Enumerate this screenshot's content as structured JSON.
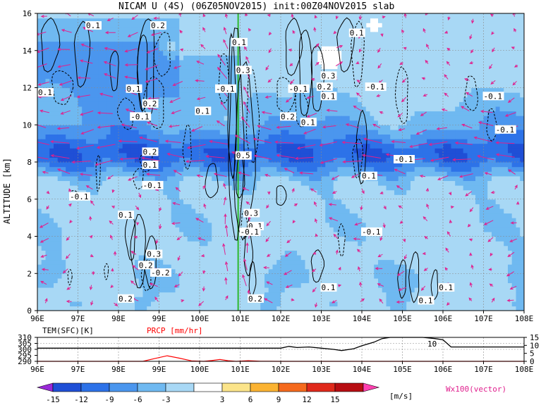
{
  "chart_data": {
    "type": "heatmap",
    "title": "NICAM U (4S) (06Z05NOV2015) init:00Z04NOV2015 slab",
    "main_panel": {
      "ylabel": "ALTITUDE [km]",
      "x_ticks": [
        "96E",
        "97E",
        "98E",
        "99E",
        "100E",
        "101E",
        "102E",
        "103E",
        "104E",
        "105E",
        "106E",
        "107E",
        "108E"
      ],
      "x_range": [
        96,
        108
      ],
      "y_ticks": [
        0,
        2,
        4,
        6,
        8,
        10,
        12,
        14,
        16
      ],
      "y_range": [
        0,
        16
      ],
      "shaded_variable": "U wind",
      "contour_labels": [
        {
          "text": "0.1",
          "lon": 97.2,
          "alt": 15.2
        },
        {
          "text": "0.2",
          "lon": 98.8,
          "alt": 15.2
        },
        {
          "text": "0.1",
          "lon": 100.8,
          "alt": 14.3
        },
        {
          "text": "0.1",
          "lon": 103.7,
          "alt": 14.8
        },
        {
          "text": "0.1",
          "lon": 96.0,
          "alt": 11.6
        },
        {
          "text": "0.1",
          "lon": 98.2,
          "alt": 11.8
        },
        {
          "text": "0.2",
          "lon": 98.6,
          "alt": 11.0
        },
        {
          "text": "-0.1",
          "lon": 98.3,
          "alt": 10.3
        },
        {
          "text": "0.1",
          "lon": 99.9,
          "alt": 10.6
        },
        {
          "text": "-0.1",
          "lon": 100.4,
          "alt": 11.8
        },
        {
          "text": "0.3",
          "lon": 100.9,
          "alt": 12.8
        },
        {
          "text": "-0.1",
          "lon": 102.2,
          "alt": 11.8
        },
        {
          "text": "0.2",
          "lon": 102.0,
          "alt": 10.3
        },
        {
          "text": "0.1",
          "lon": 102.5,
          "alt": 10.0
        },
        {
          "text": "0.3",
          "lon": 103.0,
          "alt": 12.5
        },
        {
          "text": "0.2",
          "lon": 102.9,
          "alt": 11.9
        },
        {
          "text": "0.1",
          "lon": 103.0,
          "alt": 11.4
        },
        {
          "text": "-0.1",
          "lon": 104.1,
          "alt": 11.9
        },
        {
          "text": "-0.1",
          "lon": 107.0,
          "alt": 11.4
        },
        {
          "text": "-0.1",
          "lon": 107.3,
          "alt": 9.6
        },
        {
          "text": "0.2",
          "lon": 98.6,
          "alt": 8.4
        },
        {
          "text": "0.1",
          "lon": 98.6,
          "alt": 7.7
        },
        {
          "text": "0.5",
          "lon": 100.9,
          "alt": 8.2
        },
        {
          "text": "-0.1",
          "lon": 104.8,
          "alt": 8.0
        },
        {
          "text": "0.1",
          "lon": 104.0,
          "alt": 7.1
        },
        {
          "text": "-0.1",
          "lon": 98.6,
          "alt": 6.6
        },
        {
          "text": "-0.1",
          "lon": 96.8,
          "alt": 6.0
        },
        {
          "text": "0.1",
          "lon": 98.0,
          "alt": 5.0
        },
        {
          "text": "0.3",
          "lon": 101.1,
          "alt": 5.1
        },
        {
          "text": "0.1",
          "lon": 101.2,
          "alt": 4.4
        },
        {
          "text": "-0.1",
          "lon": 101.0,
          "alt": 4.1
        },
        {
          "text": "-0.1",
          "lon": 104.0,
          "alt": 4.1
        },
        {
          "text": "0.3",
          "lon": 98.7,
          "alt": 2.9
        },
        {
          "text": "0.2",
          "lon": 98.5,
          "alt": 2.3
        },
        {
          "text": "-0.2",
          "lon": 98.8,
          "alt": 1.9
        },
        {
          "text": "0.1",
          "lon": 103.0,
          "alt": 1.1
        },
        {
          "text": "0.2",
          "lon": 98.0,
          "alt": 0.5
        },
        {
          "text": "0.2",
          "lon": 101.2,
          "alt": 0.5
        },
        {
          "text": "0.1",
          "lon": 105.4,
          "alt": 0.4
        },
        {
          "text": "0.1",
          "lon": 105.9,
          "alt": 1.1
        }
      ]
    },
    "sub_panel": {
      "left_label": "TEM(SFC)[K]",
      "left_label_color": "#000000",
      "right_label": "PRCP [mm/hr]",
      "right_label_color": "#ff0000",
      "left_ticks": [
        "310",
        "305",
        "300",
        "295",
        "290"
      ],
      "left_range": [
        290,
        310
      ],
      "right_ticks": [
        "15",
        "10",
        "5",
        "0"
      ],
      "right_range": [
        0,
        15
      ],
      "x_ticks": [
        "96E",
        "97E",
        "98E",
        "99E",
        "100E",
        "101E",
        "102E",
        "103E",
        "104E",
        "105E",
        "106E",
        "107E",
        "108E"
      ],
      "inline_label": "10",
      "temperature": [
        [
          96,
          301
        ],
        [
          97,
          301
        ],
        [
          98,
          301
        ],
        [
          99,
          301
        ],
        [
          100,
          301
        ],
        [
          101,
          301
        ],
        [
          101.5,
          301
        ],
        [
          102,
          301
        ],
        [
          102.2,
          302.5
        ],
        [
          102.4,
          301.5
        ],
        [
          102.7,
          302
        ],
        [
          103,
          301
        ],
        [
          103.3,
          300
        ],
        [
          103.5,
          299
        ],
        [
          103.8,
          300.5
        ],
        [
          104,
          303
        ],
        [
          104.3,
          306
        ],
        [
          104.5,
          309
        ],
        [
          104.7,
          310
        ],
        [
          105,
          310
        ],
        [
          105.5,
          310
        ],
        [
          105.8,
          309
        ],
        [
          106,
          308
        ],
        [
          106.2,
          302
        ],
        [
          107,
          302
        ],
        [
          108,
          302
        ]
      ],
      "precipitation": [
        [
          96,
          0
        ],
        [
          98,
          0
        ],
        [
          98.6,
          0
        ],
        [
          98.9,
          1.8
        ],
        [
          99.2,
          3.5
        ],
        [
          99.5,
          2
        ],
        [
          99.8,
          0.3
        ],
        [
          100.1,
          0
        ],
        [
          100.3,
          0.5
        ],
        [
          100.5,
          1.2
        ],
        [
          100.7,
          0.4
        ],
        [
          100.9,
          0
        ],
        [
          101.2,
          0.4
        ],
        [
          101.5,
          0.1
        ],
        [
          102,
          0
        ],
        [
          108,
          0
        ]
      ]
    },
    "colorbar": {
      "levels": [
        "-15",
        "-12",
        "-9",
        "-6",
        "-3",
        "3",
        "6",
        "9",
        "12",
        "15"
      ],
      "colors": [
        "#9a28d8",
        "#1f4fd6",
        "#2d72e8",
        "#4b96ee",
        "#6fb9f1",
        "#a8d8f5",
        "#ffffff",
        "#fbe48a",
        "#fbb332",
        "#f56a1d",
        "#e0291b",
        "#b70d12",
        "#ff40b0"
      ],
      "units": "[m/s]",
      "vector_label": "Wx100(vector)",
      "vector_color": "#e0208e"
    },
    "colors": {
      "vector": "#e0208e",
      "contour": "#000000",
      "green_line": "#2db82d",
      "precip_line": "#ff0000",
      "frame": "#000000"
    }
  }
}
